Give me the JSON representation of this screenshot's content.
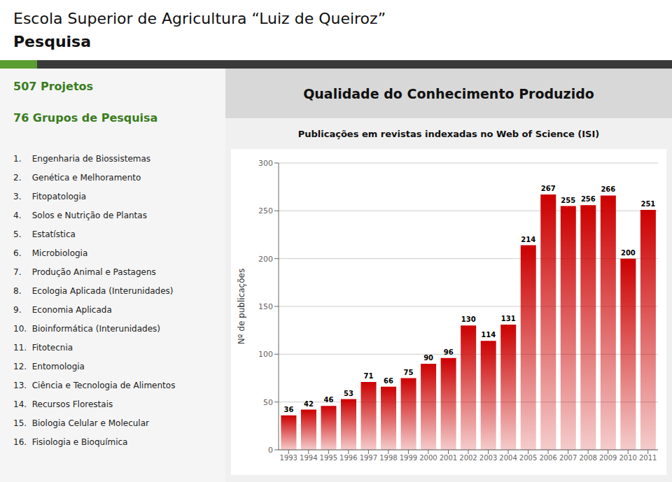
{
  "chart_data": {
    "type": "bar",
    "title": "Qualidade do Conhecimento Produzido",
    "subtitle": "Publicações em revistas indexadas no Web of Science (ISI)",
    "ylabel": "Nº de publicações",
    "annotations": [
      "Escola Superior de Agricultura “Luiz de Queiroz”",
      "Pesquisa",
      "507 Projetos",
      "76 Grupos de Pesquisa",
      "1.    Engenharia de Biossistemas",
      "2.    Genética e Melhoramento",
      "3.    Fitopatologia",
      "4.    Solos e Nutrição de Plantas",
      "5.    Estatística",
      "6.    Microbiologia",
      "7.    Produção Animal e Pastagens",
      "8.    Ecologia Aplicada (Interunidades)",
      "9.    Economia Aplicada",
      "10.  Bioinformática (Interunidades)",
      "11.  Fitotecnia",
      "12.  Entomologia",
      "13.  Ciência e Tecnologia de Alimentos",
      "14.  Recursos Florestais",
      "15.  Biologia Celular e Molecular",
      "16.  Fisiologia e Bioquímica"
    ],
    "categories": [
      1993,
      1994,
      1995,
      1996,
      1997,
      1998,
      1999,
      2000,
      2001,
      2002,
      2003,
      2004,
      2005,
      2006,
      2007,
      2008,
      2009,
      2010,
      2011
    ],
    "values": [
      36,
      42,
      46,
      53,
      71,
      66,
      75,
      90,
      96,
      130,
      114,
      131,
      214,
      267,
      255,
      256,
      266,
      200,
      251
    ],
    "color": "#cc0000",
    "ylim": [
      0,
      300
    ],
    "yticks": [
      0,
      50,
      100,
      150,
      200,
      250,
      300
    ],
    "grid": true,
    "data_labels": true
  }
}
